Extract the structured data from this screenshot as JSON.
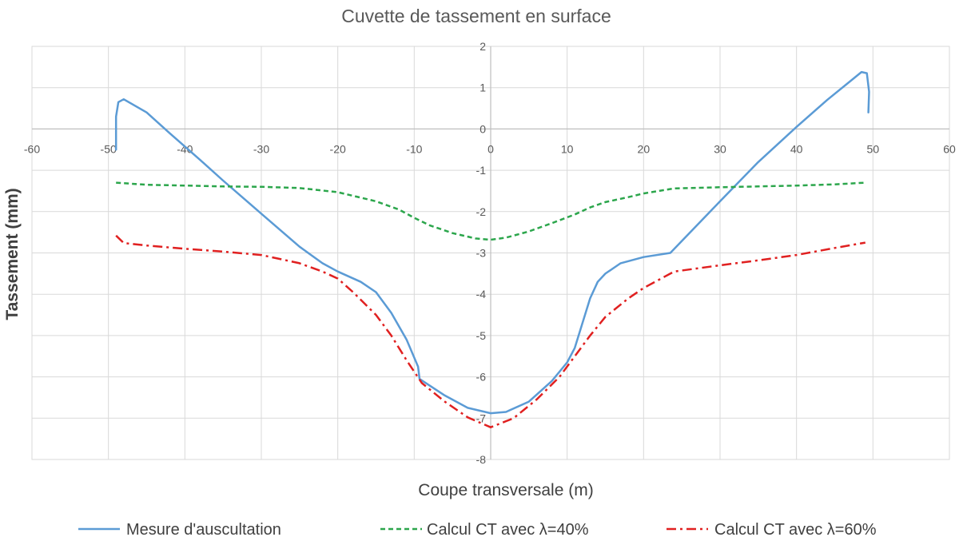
{
  "chart_data": {
    "type": "line",
    "title": "Cuvette de tassement en surface",
    "xlabel": "Coupe transversale (m)",
    "ylabel": "Tassement (mm)",
    "xlim": [
      -60,
      60
    ],
    "ylim": [
      -8,
      2
    ],
    "xticks": [
      -60,
      -50,
      -40,
      -30,
      -20,
      -10,
      0,
      10,
      20,
      30,
      40,
      50,
      60
    ],
    "yticks": [
      2,
      1,
      0,
      -1,
      -2,
      -3,
      -4,
      -5,
      -6,
      -7,
      -8
    ],
    "grid": true,
    "legend_position": "bottom",
    "series": [
      {
        "name": "Mesure d'auscultation",
        "color": "#5b9bd5",
        "style": "solid",
        "points": [
          [
            -49,
            -0.5
          ],
          [
            -49,
            0.3
          ],
          [
            -48.7,
            0.65
          ],
          [
            -48,
            0.72
          ],
          [
            -45,
            0.4
          ],
          [
            -42,
            -0.1
          ],
          [
            -38,
            -0.75
          ],
          [
            -35,
            -1.25
          ],
          [
            -30,
            -2.05
          ],
          [
            -25,
            -2.85
          ],
          [
            -22,
            -3.25
          ],
          [
            -20,
            -3.45
          ],
          [
            -17,
            -3.7
          ],
          [
            -15,
            -3.95
          ],
          [
            -13,
            -4.45
          ],
          [
            -11,
            -5.1
          ],
          [
            -9.5,
            -5.75
          ],
          [
            -9.3,
            -6.05
          ],
          [
            -6,
            -6.45
          ],
          [
            -3,
            -6.75
          ],
          [
            0,
            -6.88
          ],
          [
            2,
            -6.85
          ],
          [
            5,
            -6.6
          ],
          [
            8,
            -6.1
          ],
          [
            10,
            -5.65
          ],
          [
            11,
            -5.3
          ],
          [
            12,
            -4.7
          ],
          [
            13,
            -4.1
          ],
          [
            14,
            -3.7
          ],
          [
            15,
            -3.5
          ],
          [
            17,
            -3.25
          ],
          [
            20,
            -3.1
          ],
          [
            23.5,
            -3.0
          ],
          [
            30,
            -1.75
          ],
          [
            35,
            -0.8
          ],
          [
            40,
            0.05
          ],
          [
            44,
            0.7
          ],
          [
            47,
            1.15
          ],
          [
            48.5,
            1.38
          ],
          [
            49.2,
            1.35
          ],
          [
            49.5,
            0.9
          ],
          [
            49.4,
            0.4
          ]
        ]
      },
      {
        "name": "Calcul CT avec λ=40%",
        "color": "#2ca64c",
        "style": "dashed",
        "points": [
          [
            -49,
            -1.3
          ],
          [
            -45,
            -1.35
          ],
          [
            -40,
            -1.37
          ],
          [
            -35,
            -1.39
          ],
          [
            -30,
            -1.4
          ],
          [
            -25,
            -1.43
          ],
          [
            -20,
            -1.53
          ],
          [
            -15,
            -1.75
          ],
          [
            -12,
            -1.95
          ],
          [
            -10,
            -2.15
          ],
          [
            -8,
            -2.33
          ],
          [
            -5,
            -2.52
          ],
          [
            -2,
            -2.65
          ],
          [
            0,
            -2.68
          ],
          [
            2,
            -2.63
          ],
          [
            5,
            -2.48
          ],
          [
            8,
            -2.28
          ],
          [
            11,
            -2.07
          ],
          [
            13,
            -1.9
          ],
          [
            15,
            -1.77
          ],
          [
            18,
            -1.65
          ],
          [
            20,
            -1.56
          ],
          [
            24,
            -1.44
          ],
          [
            30,
            -1.41
          ],
          [
            35,
            -1.39
          ],
          [
            40,
            -1.37
          ],
          [
            45,
            -1.34
          ],
          [
            49,
            -1.3
          ]
        ]
      },
      {
        "name": "Calcul CT avec λ=60%",
        "color": "#e02020",
        "style": "dashdot",
        "points": [
          [
            -49,
            -2.58
          ],
          [
            -48,
            -2.76
          ],
          [
            -45,
            -2.82
          ],
          [
            -40,
            -2.9
          ],
          [
            -35,
            -2.97
          ],
          [
            -30,
            -3.05
          ],
          [
            -25,
            -3.25
          ],
          [
            -22,
            -3.45
          ],
          [
            -20,
            -3.62
          ],
          [
            -18,
            -3.95
          ],
          [
            -15,
            -4.5
          ],
          [
            -13,
            -5.0
          ],
          [
            -11,
            -5.6
          ],
          [
            -9,
            -6.15
          ],
          [
            -6,
            -6.6
          ],
          [
            -3,
            -6.98
          ],
          [
            0,
            -7.22
          ],
          [
            3,
            -7.0
          ],
          [
            6,
            -6.55
          ],
          [
            9,
            -6.0
          ],
          [
            11,
            -5.5
          ],
          [
            13,
            -5.0
          ],
          [
            15,
            -4.55
          ],
          [
            18,
            -4.1
          ],
          [
            20,
            -3.85
          ],
          [
            24,
            -3.45
          ],
          [
            30,
            -3.3
          ],
          [
            35,
            -3.18
          ],
          [
            40,
            -3.05
          ],
          [
            45,
            -2.88
          ],
          [
            49,
            -2.75
          ]
        ]
      }
    ]
  }
}
